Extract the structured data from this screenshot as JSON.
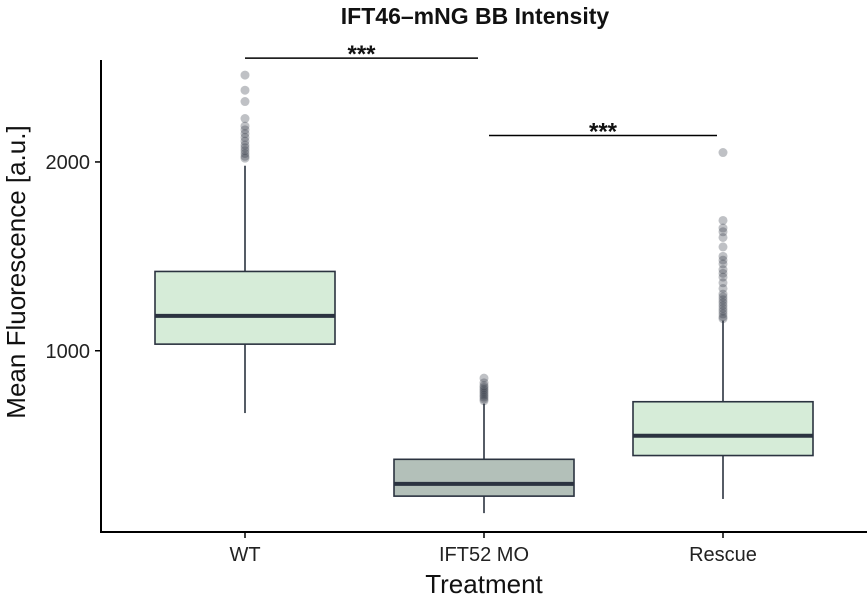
{
  "chart_data": {
    "type": "box",
    "title": "IFT46–mNG BB Intensity",
    "xlabel": "Treatment",
    "ylabel": "Mean Fluorescence [a.u.]",
    "ylim": [
      40,
      2540
    ],
    "yticks": [
      1000,
      2000
    ],
    "ytick_labels": [
      "1000",
      "2000"
    ],
    "categories": [
      "WT",
      "IFT52 MO",
      "Rescue"
    ],
    "boxes": [
      {
        "category": "WT",
        "whisker_low": 670,
        "q1": 1035,
        "median": 1185,
        "q3": 1420,
        "whisker_high": 1980,
        "fill": "#d6ecd8",
        "outliers": [
          2020,
          2030,
          2045,
          2060,
          2075,
          2090,
          2110,
          2130,
          2150,
          2170,
          2190,
          2230,
          2320,
          2380,
          2460
        ]
      },
      {
        "category": "IFT52 MO",
        "whisker_low": 140,
        "q1": 230,
        "median": 295,
        "q3": 425,
        "whisker_high": 720,
        "fill": "#b3c0b9",
        "outliers": [
          735,
          745,
          755,
          765,
          775,
          785,
          795,
          805,
          815,
          830,
          855
        ]
      },
      {
        "category": "Rescue",
        "whisker_low": 215,
        "q1": 445,
        "median": 550,
        "q3": 730,
        "whisker_high": 1160,
        "fill": "#d6ecd8",
        "outliers": [
          1170,
          1180,
          1195,
          1210,
          1225,
          1240,
          1255,
          1270,
          1285,
          1300,
          1330,
          1360,
          1390,
          1410,
          1430,
          1460,
          1480,
          1500,
          1550,
          1600,
          1630,
          1650,
          1690,
          2050
        ]
      }
    ],
    "significance": [
      {
        "from": "WT",
        "to": "IFT52 MO",
        "y": 2550,
        "label": "***"
      },
      {
        "from": "IFT52 MO",
        "to": "Rescue",
        "y": 2140,
        "label": "***"
      }
    ],
    "colors": {
      "box_edge": "#2b3340",
      "median": "#2b3340",
      "outlier": "#2b3340",
      "axis": "#000000"
    }
  }
}
